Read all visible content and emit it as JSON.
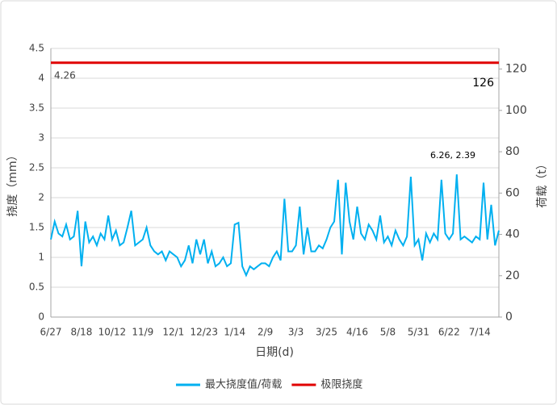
{
  "chart_data": {
    "type": "line",
    "categories": [
      "6/27",
      null,
      null,
      null,
      null,
      null,
      null,
      null,
      "8/18",
      null,
      null,
      null,
      null,
      null,
      null,
      null,
      "10/12",
      null,
      null,
      null,
      null,
      null,
      null,
      null,
      "11/9",
      null,
      null,
      null,
      null,
      null,
      null,
      null,
      "12/1",
      null,
      null,
      null,
      null,
      null,
      null,
      null,
      "12/23",
      null,
      null,
      null,
      null,
      null,
      null,
      null,
      "1/14",
      null,
      null,
      null,
      null,
      null,
      null,
      null,
      "2/9",
      null,
      null,
      null,
      null,
      null,
      null,
      null,
      "3/3",
      null,
      null,
      null,
      null,
      null,
      null,
      null,
      "3/25",
      null,
      null,
      null,
      null,
      null,
      null,
      null,
      "4/16",
      null,
      null,
      null,
      null,
      null,
      null,
      null,
      "5/8",
      null,
      null,
      null,
      null,
      null,
      null,
      null,
      "5/31",
      null,
      null,
      null,
      null,
      null,
      null,
      null,
      "6/22",
      null,
      null,
      null,
      null,
      null,
      null,
      null,
      "7/14",
      null,
      null,
      null,
      null,
      null
    ],
    "series": [
      {
        "name": "最大挠度值/荷载",
        "color": "#00b0f0",
        "values": [
          1.3,
          1.6,
          1.4,
          1.35,
          1.55,
          1.3,
          1.35,
          1.78,
          0.85,
          1.6,
          1.25,
          1.35,
          1.2,
          1.4,
          1.3,
          1.7,
          1.3,
          1.45,
          1.2,
          1.25,
          1.5,
          1.78,
          1.2,
          1.25,
          1.3,
          1.5,
          1.2,
          1.1,
          1.05,
          1.1,
          0.95,
          1.1,
          1.05,
          1.0,
          0.85,
          0.95,
          1.2,
          0.9,
          1.3,
          1.05,
          1.3,
          0.9,
          1.1,
          0.85,
          0.9,
          1.0,
          0.85,
          0.9,
          1.55,
          1.58,
          0.85,
          0.7,
          0.85,
          0.8,
          0.85,
          0.9,
          0.9,
          0.85,
          1.0,
          1.1,
          0.95,
          1.98,
          1.1,
          1.1,
          1.2,
          1.85,
          1.05,
          1.5,
          1.1,
          1.1,
          1.2,
          1.15,
          1.3,
          1.5,
          1.6,
          2.3,
          1.05,
          2.25,
          1.6,
          1.3,
          1.85,
          1.4,
          1.3,
          1.55,
          1.45,
          1.3,
          1.7,
          1.25,
          1.35,
          1.2,
          1.45,
          1.3,
          1.2,
          1.35,
          2.35,
          1.2,
          1.3,
          0.95,
          1.4,
          1.25,
          1.4,
          1.3,
          2.3,
          1.4,
          1.3,
          1.4,
          2.39,
          1.3,
          1.35,
          1.3,
          1.25,
          1.35,
          1.3,
          2.25,
          1.3,
          1.88,
          1.2,
          1.45
        ]
      },
      {
        "name": "极限挠度",
        "color": "#e00000",
        "value": 4.26
      }
    ],
    "xlabel": "日期(d)",
    "ylabel": "挠度（mm）",
    "y2label": "荷载（t）",
    "ylim": [
      0,
      4.5
    ],
    "yticks": [
      0,
      0.5,
      1,
      1.5,
      2,
      2.5,
      3,
      3.5,
      4,
      4.5
    ],
    "y2lim": [
      0,
      130
    ],
    "y2ticks": [
      0,
      20,
      40,
      60,
      80,
      100,
      120
    ],
    "grid": true,
    "legend": "bottom",
    "annotations": [
      "126",
      "6.26, 2.39"
    ]
  }
}
